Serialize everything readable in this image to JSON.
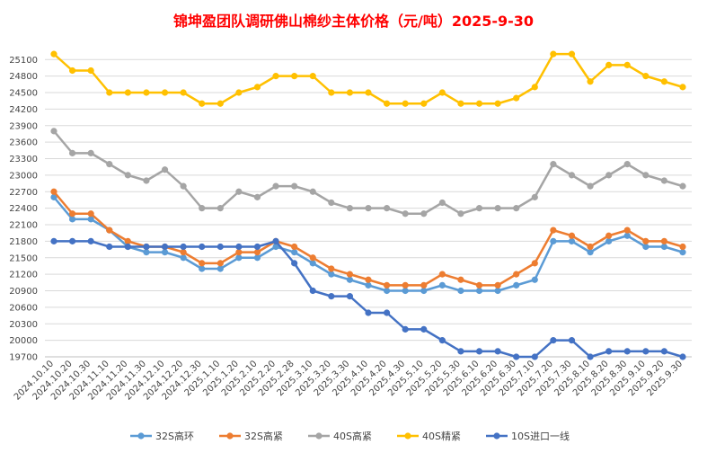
{
  "chart_data": {
    "type": "line",
    "title": "锦坤盈团队调研佛山棉纱主体价格（元/吨）2025-9-30",
    "xlabel": "",
    "ylabel": "",
    "ylim": [
      19700,
      25300
    ],
    "yticks": [
      19700,
      20000,
      20300,
      20600,
      20900,
      21200,
      21500,
      21800,
      22100,
      22400,
      22700,
      23000,
      23300,
      23600,
      23900,
      24200,
      24500,
      24800,
      25100
    ],
    "grid": true,
    "legend": "bottom",
    "categories": [
      "2024.10.10",
      "2024.10.20",
      "2024.10.30",
      "2024.11.10",
      "2024.11.20",
      "2024.11.30",
      "2024.12.10",
      "2024.12.20",
      "2024.12.30",
      "2025.1.10",
      "2025.1.20",
      "2025.2.10",
      "2025.2.20",
      "2025.2.28",
      "2025.3.10",
      "2025.3.20",
      "2025.3.30",
      "2025.4.10",
      "2025.4.20",
      "2025.4.30",
      "2025.5.10",
      "2025.5.20",
      "2025.5.30",
      "2025.6.10",
      "2025.6.20",
      "2025.6.30",
      "2025.7.10",
      "2025.7.20",
      "2025.7.30",
      "2025.8.10",
      "2025.8.20",
      "2025.8.30",
      "2025.9.10",
      "2025.9.20",
      "2025.9.30"
    ],
    "series": [
      {
        "name": "32S高环",
        "color": "#5b9bd5",
        "values": [
          22600,
          22200,
          22200,
          22000,
          21700,
          21600,
          21600,
          21500,
          21300,
          21300,
          21500,
          21500,
          21700,
          21600,
          21400,
          21200,
          21100,
          21000,
          20900,
          20900,
          20900,
          21000,
          20900,
          20900,
          20900,
          21000,
          21100,
          21800,
          21800,
          21600,
          21800,
          21900,
          21700,
          21700,
          21600
        ]
      },
      {
        "name": "32S高紧",
        "color": "#ed7d31",
        "values": [
          22700,
          22300,
          22300,
          22000,
          21800,
          21700,
          21700,
          21600,
          21400,
          21400,
          21600,
          21600,
          21800,
          21700,
          21500,
          21300,
          21200,
          21100,
          21000,
          21000,
          21000,
          21200,
          21100,
          21000,
          21000,
          21200,
          21400,
          22000,
          21900,
          21700,
          21900,
          22000,
          21800,
          21800,
          21700
        ]
      },
      {
        "name": "40S高紧",
        "color": "#a5a5a5",
        "values": [
          23800,
          23400,
          23400,
          23200,
          23000,
          22900,
          23100,
          22800,
          22400,
          22400,
          22700,
          22600,
          22800,
          22800,
          22700,
          22500,
          22400,
          22400,
          22400,
          22300,
          22300,
          22500,
          22300,
          22400,
          22400,
          22400,
          22600,
          23200,
          23000,
          22800,
          23000,
          23200,
          23000,
          22900,
          22800
        ]
      },
      {
        "name": "40S精紧",
        "color": "#ffc000",
        "values": [
          25200,
          24900,
          24900,
          24500,
          24500,
          24500,
          24500,
          24500,
          24300,
          24300,
          24500,
          24600,
          24800,
          24800,
          24800,
          24500,
          24500,
          24500,
          24300,
          24300,
          24300,
          24500,
          24300,
          24300,
          24300,
          24400,
          24600,
          25200,
          25200,
          24700,
          25000,
          25000,
          24800,
          24700,
          24600
        ]
      },
      {
        "name": "10S进口一线",
        "color": "#4472c4",
        "values": [
          21800,
          21800,
          21800,
          21700,
          21700,
          21700,
          21700,
          21700,
          21700,
          21700,
          21700,
          21700,
          21800,
          21400,
          20900,
          20800,
          20800,
          20500,
          20500,
          20200,
          20200,
          20000,
          19800,
          19800,
          19800,
          19700,
          19700,
          20000,
          20000,
          19700,
          19800,
          19800,
          19800,
          19800,
          19700
        ]
      }
    ]
  }
}
